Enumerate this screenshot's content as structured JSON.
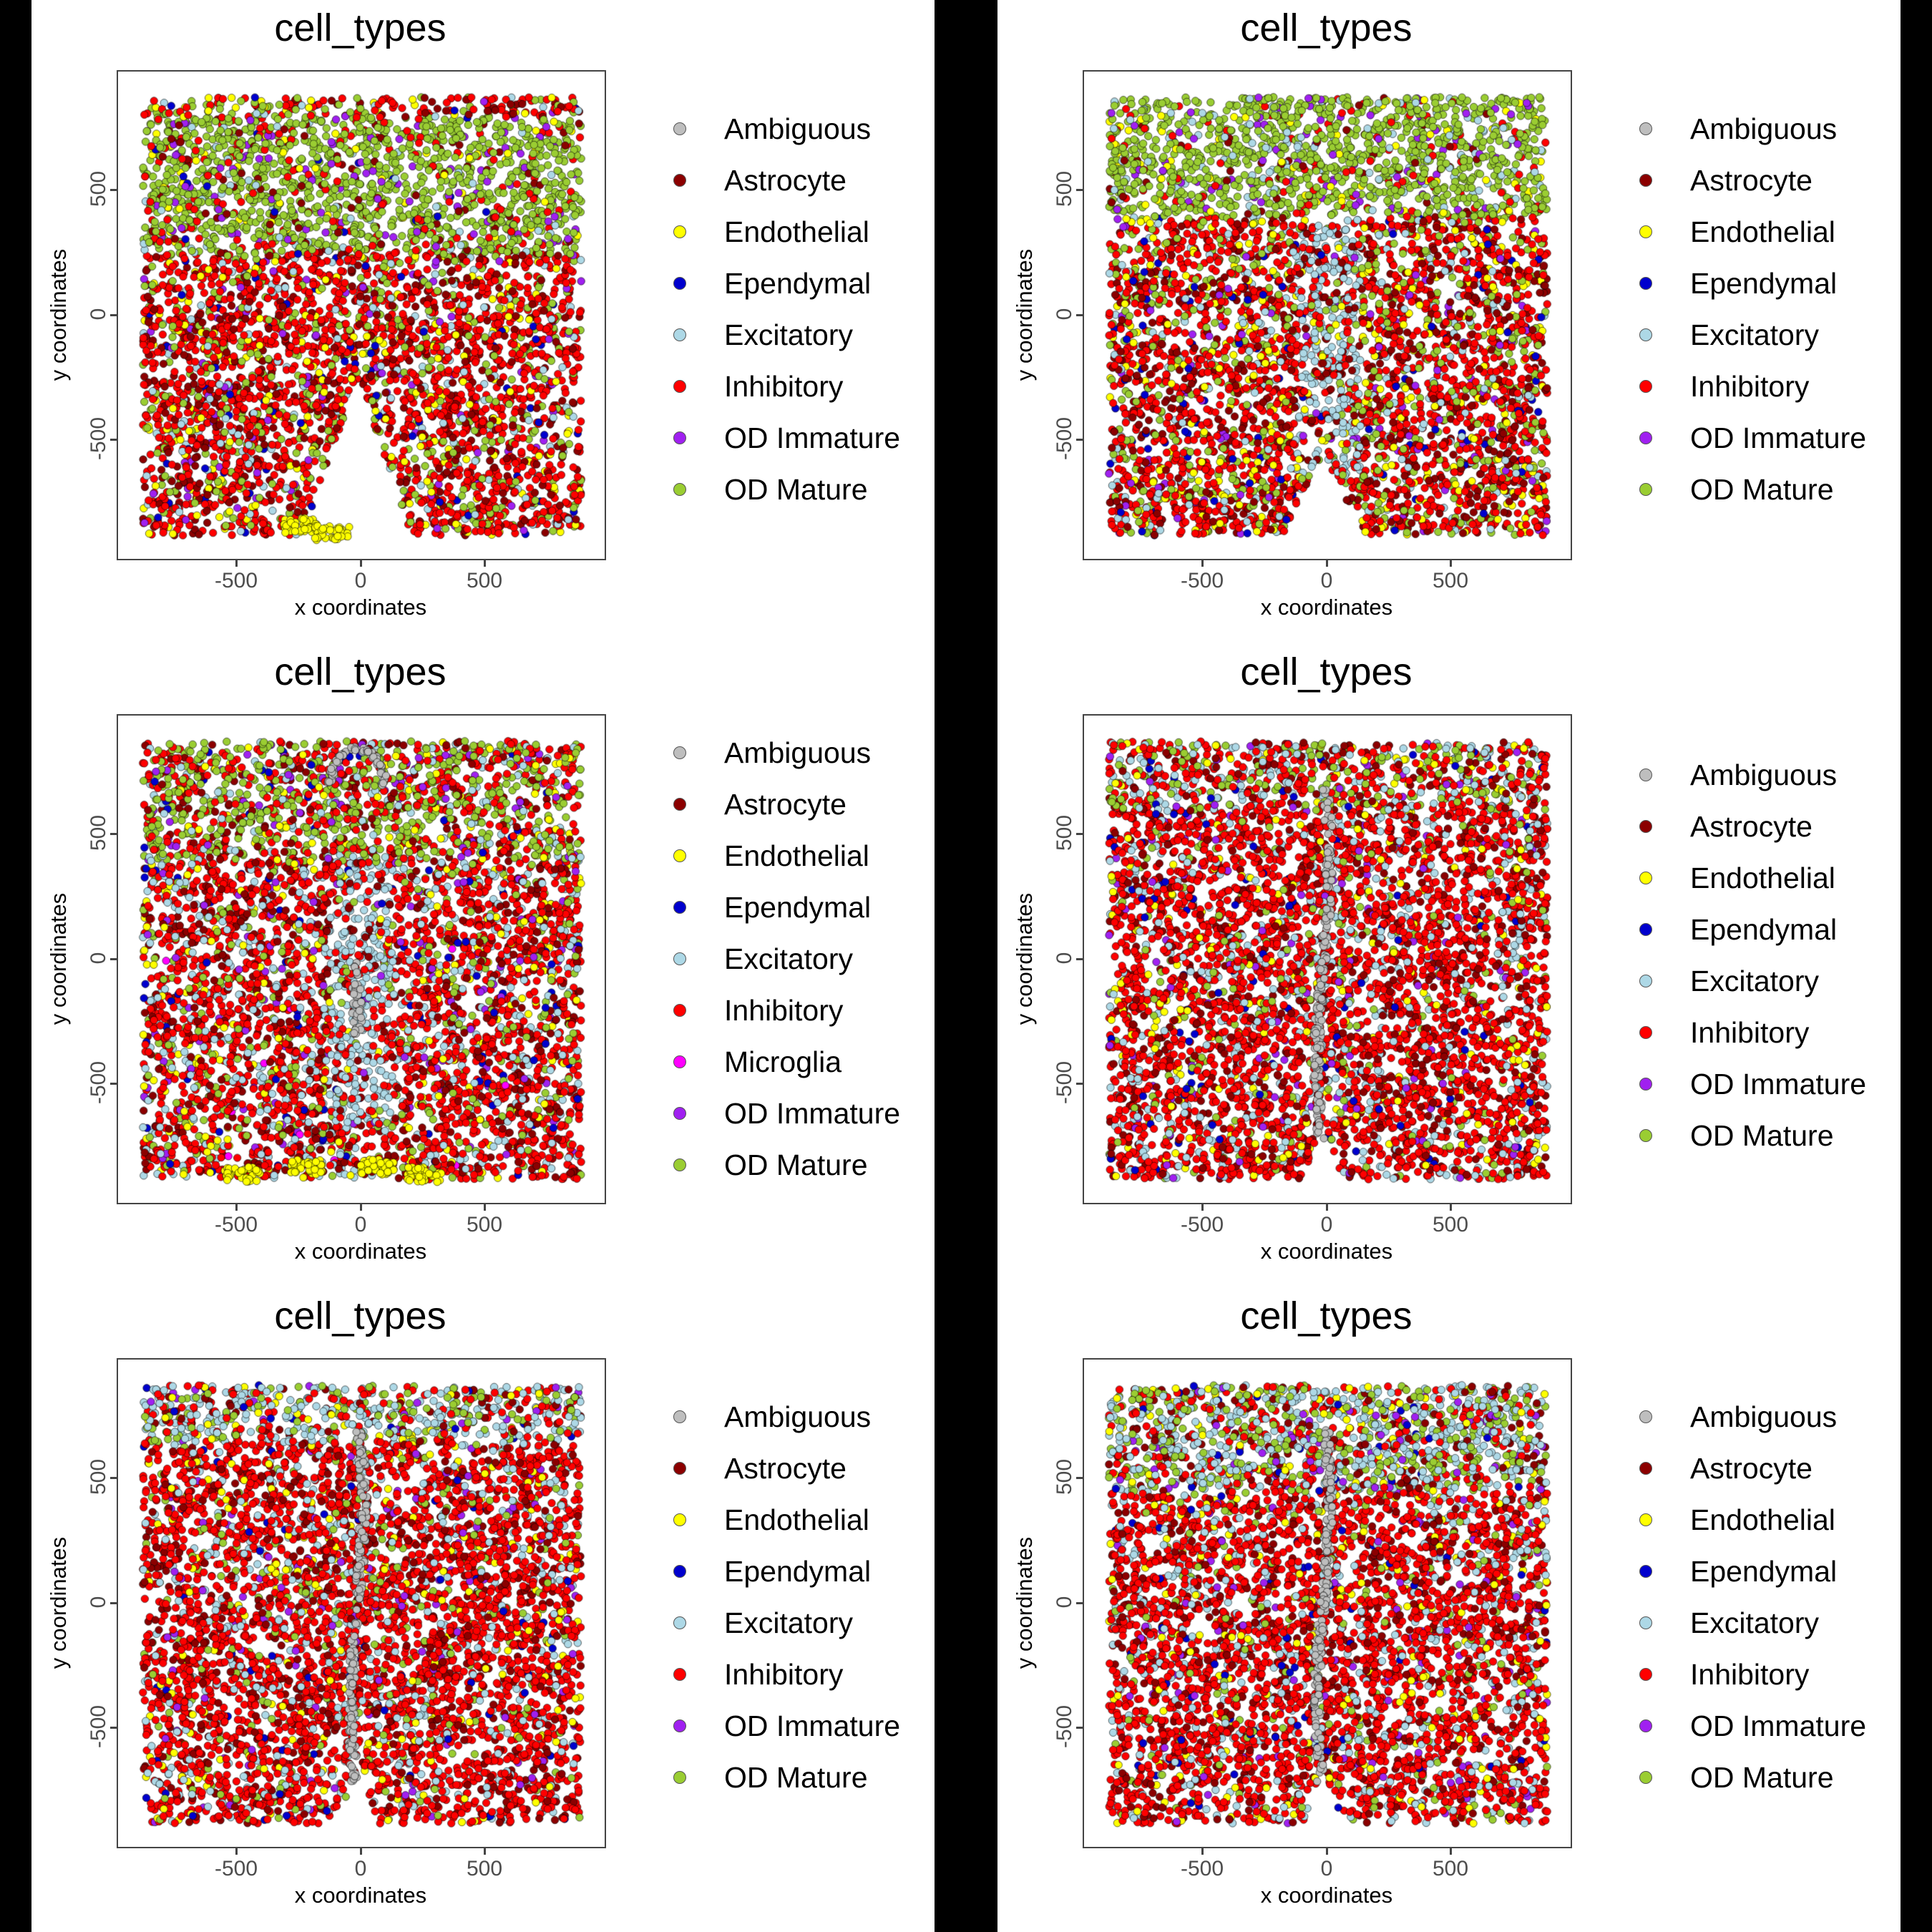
{
  "layout": {
    "background": "#000000",
    "panel_background": "#ffffff",
    "rows": 3,
    "cols": 2
  },
  "cell_colors": {
    "Ambiguous": "#bebebe",
    "Astrocyte": "#8b0000",
    "Endothelial": "#ffff00",
    "Ependymal": "#0000cd",
    "Excitatory": "#add8e6",
    "Inhibitory": "#ff0000",
    "Microglia": "#ff00ff",
    "OD Immature": "#a020f0",
    "OD Mature": "#9acd32"
  },
  "chart_data": [
    {
      "type": "scatter",
      "panel": "row1-left",
      "title": "cell_types",
      "xlabel": "x coordinates",
      "ylabel": "y coordinates",
      "xlim": [
        -975,
        975
      ],
      "ylim": [
        -975,
        975
      ],
      "xticks": [
        -500,
        0,
        500
      ],
      "yticks": [
        -500,
        0,
        500
      ],
      "grid": false,
      "legend_position": "right",
      "legend": [
        "Ambiguous",
        "Astrocyte",
        "Endothelial",
        "Ependymal",
        "Excitatory",
        "Inhibitory",
        "OD Immature",
        "OD Mature"
      ],
      "description": "OD Mature band across top (y 250-800); Inhibitory/Astrocyte dominant below; Endothelial cluster bottom-center near x -250..-50, y -850; V-shaped gap at bottom center",
      "regions": [
        {
          "y": [
            800,
            880
          ],
          "mix": {
            "Inhibitory": 0.45,
            "Astrocyte": 0.15,
            "OD Mature": 0.2,
            "Endothelial": 0.08,
            "Excitatory": 0.07,
            "OD Immature": 0.03,
            "Ependymal": 0.02
          }
        },
        {
          "y": [
            250,
            800
          ],
          "mix": {
            "OD Mature": 0.7,
            "OD Immature": 0.06,
            "Inhibitory": 0.1,
            "Astrocyte": 0.06,
            "Endothelial": 0.04,
            "Excitatory": 0.03,
            "Ependymal": 0.01
          }
        },
        {
          "y": [
            -880,
            250
          ],
          "mix": {
            "Inhibitory": 0.52,
            "Astrocyte": 0.17,
            "OD Mature": 0.14,
            "Endothelial": 0.07,
            "Excitatory": 0.05,
            "OD Immature": 0.03,
            "Ependymal": 0.02
          }
        }
      ],
      "gap": "v",
      "yellow_cluster": [
        [
          -250,
          -840
        ],
        [
          -120,
          -870
        ]
      ]
    },
    {
      "type": "scatter",
      "panel": "row1-right",
      "title": "cell_types",
      "xlabel": "x coordinates",
      "ylabel": "y coordinates",
      "xlim": [
        -975,
        975
      ],
      "ylim": [
        -975,
        975
      ],
      "xticks": [
        -500,
        0,
        500
      ],
      "yticks": [
        -500,
        0,
        500
      ],
      "grid": false,
      "legend_position": "right",
      "legend": [
        "Ambiguous",
        "Astrocyte",
        "Endothelial",
        "Ependymal",
        "Excitatory",
        "Inhibitory",
        "OD Immature",
        "OD Mature"
      ],
      "description": "Dense OD Mature band top (y 400-880); Inhibitory/Astrocyte below with Excitatory column in center; gap at bottom center",
      "regions": [
        {
          "y": [
            400,
            880
          ],
          "mix": {
            "OD Mature": 0.72,
            "Excitatory": 0.08,
            "OD Immature": 0.05,
            "Inhibitory": 0.07,
            "Astrocyte": 0.04,
            "Endothelial": 0.04
          }
        },
        {
          "y": [
            -880,
            400
          ],
          "mix": {
            "Inhibitory": 0.46,
            "Astrocyte": 0.18,
            "OD Mature": 0.15,
            "Endothelial": 0.08,
            "Excitatory": 0.07,
            "OD Immature": 0.03,
            "Ependymal": 0.03
          }
        }
      ],
      "center_column": "Excitatory",
      "gap": "v-small"
    },
    {
      "type": "scatter",
      "panel": "row2-left",
      "title": "cell_types",
      "xlabel": "x coordinates",
      "ylabel": "y coordinates",
      "xlim": [
        -975,
        975
      ],
      "ylim": [
        -975,
        975
      ],
      "xticks": [
        -500,
        0,
        500
      ],
      "yticks": [
        -500,
        0,
        500
      ],
      "grid": false,
      "legend_position": "right",
      "legend": [
        "Ambiguous",
        "Astrocyte",
        "Endothelial",
        "Ependymal",
        "Excitatory",
        "Inhibitory",
        "Microglia",
        "OD Immature",
        "OD Mature"
      ],
      "description": "OD Mature cluster upper-center (y 400-880); Ambiguous arc near top center; Excitatory concentration lower-center; two Endothelial clusters at bottom (x -500..-250 and x 50..250)",
      "regions": [
        {
          "y": [
            400,
            880
          ],
          "mix": {
            "OD Mature": 0.4,
            "Inhibitory": 0.3,
            "Astrocyte": 0.1,
            "Excitatory": 0.08,
            "OD Immature": 0.05,
            "Endothelial": 0.05,
            "Ependymal": 0.02
          }
        },
        {
          "y": [
            -880,
            400
          ],
          "mix": {
            "Inhibitory": 0.5,
            "Astrocyte": 0.15,
            "Excitatory": 0.13,
            "OD Mature": 0.1,
            "Endothelial": 0.06,
            "OD Immature": 0.03,
            "Ependymal": 0.025,
            "Microglia": 0.005
          }
        }
      ],
      "center_column": "Excitatory",
      "ambiguous_arc": true,
      "yellow_cluster": [
        [
          -480,
          -860
        ],
        [
          -230,
          -830
        ],
        [
          60,
          -830
        ],
        [
          250,
          -860
        ]
      ]
    },
    {
      "type": "scatter",
      "panel": "row2-right",
      "title": "cell_types",
      "xlabel": "x coordinates",
      "ylabel": "y coordinates",
      "xlim": [
        -975,
        975
      ],
      "ylim": [
        -975,
        975
      ],
      "xticks": [
        -500,
        0,
        500
      ],
      "yticks": [
        -500,
        0,
        500
      ],
      "grid": false,
      "legend_position": "right",
      "legend": [
        "Ambiguous",
        "Astrocyte",
        "Endothelial",
        "Ependymal",
        "Excitatory",
        "Inhibitory",
        "OD Immature",
        "OD Mature"
      ],
      "description": "Inhibitory dominant; Ambiguous vertical streak along x≈0 from y 700 to -700; OD Mature cluster near top center; Excitatory mixed top",
      "regions": [
        {
          "y": [
            600,
            880
          ],
          "mix": {
            "Inhibitory": 0.38,
            "Excitatory": 0.2,
            "OD Mature": 0.2,
            "Astrocyte": 0.12,
            "Endothelial": 0.05,
            "OD Immature": 0.03,
            "Ependymal": 0.02
          }
        },
        {
          "y": [
            -880,
            600
          ],
          "mix": {
            "Inhibitory": 0.58,
            "Astrocyte": 0.15,
            "Excitatory": 0.12,
            "OD Mature": 0.05,
            "Endothelial": 0.05,
            "OD Immature": 0.03,
            "Ependymal": 0.02
          }
        }
      ],
      "ambiguous_streak": true,
      "gap": "v-narrow"
    },
    {
      "type": "scatter",
      "panel": "row3-left",
      "title": "cell_types",
      "xlabel": "x coordinates",
      "ylabel": "y coordinates",
      "xlim": [
        -975,
        975
      ],
      "ylim": [
        -975,
        975
      ],
      "xticks": [
        -500,
        0,
        500
      ],
      "yticks": [
        -500,
        0,
        500
      ],
      "grid": false,
      "legend_position": "right",
      "legend": [
        "Ambiguous",
        "Astrocyte",
        "Endothelial",
        "Ependymal",
        "Excitatory",
        "Inhibitory",
        "OD Immature",
        "OD Mature"
      ],
      "description": "Inhibitory dominant; Ambiguous vertical streak x≈0 from y 700 to -700; Excitatory band at top; OD Mature top corners",
      "regions": [
        {
          "y": [
            650,
            880
          ],
          "mix": {
            "Excitatory": 0.38,
            "OD Mature": 0.22,
            "Inhibitory": 0.2,
            "Astrocyte": 0.1,
            "Endothelial": 0.05,
            "OD Immature": 0.03,
            "Ependymal": 0.02
          }
        },
        {
          "y": [
            -880,
            650
          ],
          "mix": {
            "Inhibitory": 0.62,
            "Astrocyte": 0.14,
            "Excitatory": 0.1,
            "OD Mature": 0.05,
            "Endothelial": 0.05,
            "OD Immature": 0.025,
            "Ependymal": 0.015
          }
        }
      ],
      "ambiguous_streak": true,
      "gap": "v-narrow"
    },
    {
      "type": "scatter",
      "panel": "row3-right",
      "title": "cell_types",
      "xlabel": "x coordinates",
      "ylabel": "y coordinates",
      "xlim": [
        -975,
        975
      ],
      "ylim": [
        -975,
        975
      ],
      "xticks": [
        -500,
        0,
        500
      ],
      "yticks": [
        -500,
        0,
        500
      ],
      "grid": false,
      "legend_position": "right",
      "legend": [
        "Ambiguous",
        "Astrocyte",
        "Endothelial",
        "Ependymal",
        "Excitatory",
        "Inhibitory",
        "OD Immature",
        "OD Mature"
      ],
      "description": "Inhibitory dominant; Ambiguous vertical streak x≈0 from y 600 to -750; Excitatory and OD Mature mixed at top",
      "regions": [
        {
          "y": [
            450,
            880
          ],
          "mix": {
            "Excitatory": 0.35,
            "OD Mature": 0.25,
            "Inhibitory": 0.18,
            "Astrocyte": 0.1,
            "Endothelial": 0.06,
            "OD Immature": 0.04,
            "Ependymal": 0.02
          }
        },
        {
          "y": [
            -880,
            450
          ],
          "mix": {
            "Inhibitory": 0.6,
            "Astrocyte": 0.14,
            "Excitatory": 0.12,
            "OD Mature": 0.05,
            "Endothelial": 0.05,
            "OD Immature": 0.025,
            "Ependymal": 0.015
          }
        }
      ],
      "ambiguous_streak": true,
      "gap": "v-narrow"
    }
  ],
  "panels": [
    {
      "title": "cell_types",
      "xaxis_title": "x coordinates",
      "yaxis_title": "y coordinates",
      "xtick_labels": [
        "-500",
        "0",
        "500"
      ],
      "ytick_labels": [
        "500",
        "0",
        "-500"
      ],
      "legend": [
        "Ambiguous",
        "Astrocyte",
        "Endothelial",
        "Ependymal",
        "Excitatory",
        "Inhibitory",
        "OD Immature",
        "OD Mature"
      ]
    },
    {
      "title": "cell_types",
      "xaxis_title": "x coordinates",
      "yaxis_title": "y coordinates",
      "xtick_labels": [
        "-500",
        "0",
        "500"
      ],
      "ytick_labels": [
        "500",
        "0",
        "-500"
      ],
      "legend": [
        "Ambiguous",
        "Astrocyte",
        "Endothelial",
        "Ependymal",
        "Excitatory",
        "Inhibitory",
        "OD Immature",
        "OD Mature"
      ]
    },
    {
      "title": "cell_types",
      "xaxis_title": "x coordinates",
      "yaxis_title": "y coordinates",
      "xtick_labels": [
        "-500",
        "0",
        "500"
      ],
      "ytick_labels": [
        "500",
        "0",
        "-500"
      ],
      "legend": [
        "Ambiguous",
        "Astrocyte",
        "Endothelial",
        "Ependymal",
        "Excitatory",
        "Inhibitory",
        "Microglia",
        "OD Immature",
        "OD Mature"
      ]
    },
    {
      "title": "cell_types",
      "xaxis_title": "x coordinates",
      "yaxis_title": "y coordinates",
      "xtick_labels": [
        "-500",
        "0",
        "500"
      ],
      "ytick_labels": [
        "500",
        "0",
        "-500"
      ],
      "legend": [
        "Ambiguous",
        "Astrocyte",
        "Endothelial",
        "Ependymal",
        "Excitatory",
        "Inhibitory",
        "OD Immature",
        "OD Mature"
      ]
    },
    {
      "title": "cell_types",
      "xaxis_title": "x coordinates",
      "yaxis_title": "y coordinates",
      "xtick_labels": [
        "-500",
        "0",
        "500"
      ],
      "ytick_labels": [
        "500",
        "0",
        "-500"
      ],
      "legend": [
        "Ambiguous",
        "Astrocyte",
        "Endothelial",
        "Ependymal",
        "Excitatory",
        "Inhibitory",
        "OD Immature",
        "OD Mature"
      ]
    },
    {
      "title": "cell_types",
      "xaxis_title": "x coordinates",
      "yaxis_title": "y coordinates",
      "xtick_labels": [
        "-500",
        "0",
        "500"
      ],
      "ytick_labels": [
        "500",
        "0",
        "-500"
      ],
      "legend": [
        "Ambiguous",
        "Astrocyte",
        "Endothelial",
        "Ependymal",
        "Excitatory",
        "Inhibitory",
        "OD Immature",
        "OD Mature"
      ]
    }
  ]
}
